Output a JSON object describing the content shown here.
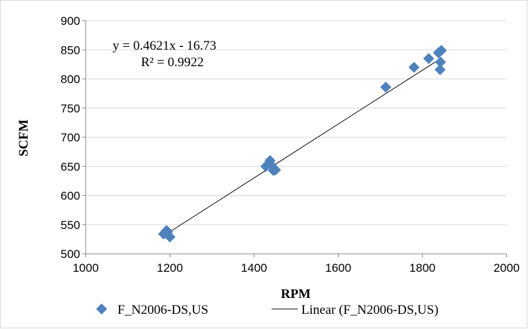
{
  "chart_data": {
    "type": "scatter",
    "xlabel": "RPM",
    "ylabel": "SCFM",
    "xlim": [
      1000,
      2000
    ],
    "ylim": [
      500,
      900
    ],
    "xticks": [
      "1000",
      "1200",
      "1400",
      "1600",
      "1800",
      "2000"
    ],
    "yticks": [
      "500",
      "550",
      "600",
      "650",
      "700",
      "750",
      "800",
      "850",
      "900"
    ],
    "grid": "horizontal",
    "legend_position": "bottom",
    "colors": {
      "marker": "#4f81bd",
      "trendline": "#000000",
      "grid": "#d9d9d9"
    },
    "series": [
      {
        "name": "F_N2006-DS,US",
        "marker": "diamond",
        "points": [
          [
            1185,
            534
          ],
          [
            1192,
            540
          ],
          [
            1195,
            538
          ],
          [
            1200,
            529
          ],
          [
            1428,
            650
          ],
          [
            1435,
            655
          ],
          [
            1438,
            660
          ],
          [
            1441,
            652
          ],
          [
            1446,
            643
          ],
          [
            1451,
            644
          ],
          [
            1713,
            786
          ],
          [
            1780,
            820
          ],
          [
            1815,
            835
          ],
          [
            1838,
            845
          ],
          [
            1845,
            849
          ],
          [
            1843,
            829
          ],
          [
            1842,
            816
          ]
        ]
      }
    ],
    "trendline": {
      "name": "Linear (F_N2006-DS,US)",
      "slope": 0.4621,
      "intercept": -16.73,
      "x_range": [
        1185,
        1845
      ],
      "equation_label": "y = 0.4621x - 16.73",
      "r2_label": "R² = 0.9922"
    }
  }
}
